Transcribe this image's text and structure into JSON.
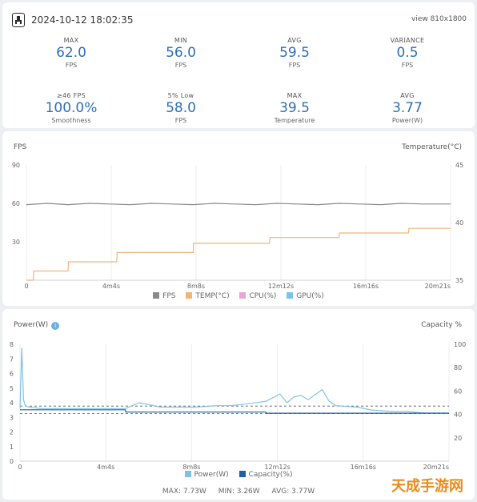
{
  "header": {
    "timestamp": "2024-10-12 18:02:35",
    "resolution": "view 810x1800"
  },
  "stats": [
    {
      "label": "MAX",
      "value": "62.0",
      "unit": "FPS"
    },
    {
      "label": "MIN",
      "value": "56.0",
      "unit": "FPS"
    },
    {
      "label": "AVG",
      "value": "59.5",
      "unit": "FPS"
    },
    {
      "label": "VARIANCE",
      "value": "0.5",
      "unit": "FPS"
    },
    {
      "label": "≥46 FPS",
      "value": "100.0%",
      "unit": "Smoothness"
    },
    {
      "label": "5% Low",
      "value": "58.0",
      "unit": "FPS"
    },
    {
      "label": "MAX",
      "value": "39.5",
      "unit": "Temperature"
    },
    {
      "label": "AVG",
      "value": "3.77",
      "unit": "Power(W)"
    }
  ],
  "fps_chart": {
    "left_title": "FPS",
    "right_title": "Temperature(°C)",
    "legend": [
      {
        "label": "FPS",
        "color": "#8a8a8a"
      },
      {
        "label": "TEMP(°C)",
        "color": "#f1b57a"
      },
      {
        "label": "CPU(%)",
        "color": "#e7a6d6"
      },
      {
        "label": "GPU(%)",
        "color": "#7cc3e8"
      }
    ]
  },
  "power_chart": {
    "left_title": "Power(W)",
    "right_title": "Capacity %",
    "legend": [
      {
        "label": "Power(W)",
        "color": "#7cc3e8"
      },
      {
        "label": "Capacity(%)",
        "color": "#1f5fa3"
      }
    ],
    "summary": {
      "max": "MAX: 7.73W",
      "min": "MIN: 3.26W",
      "avg": "AVG: 3.77W"
    }
  },
  "watermark": "天成手游网",
  "chart_data": [
    {
      "type": "line",
      "x_ticks": [
        "0",
        "4m4s",
        "8m8s",
        "12m12s",
        "16m16s",
        "20m21s"
      ],
      "y_left_ticks": [
        "90",
        "60",
        "30"
      ],
      "y_left_range": [
        0,
        90
      ],
      "y_right_ticks": [
        "45",
        "40",
        "35"
      ],
      "y_right_range": [
        35,
        45
      ],
      "x_range": [
        0,
        1221
      ],
      "grid": "vertical",
      "series": [
        {
          "name": "FPS",
          "axis": "left",
          "x": [
            0,
            60,
            120,
            180,
            240,
            300,
            360,
            420,
            480,
            540,
            600,
            660,
            720,
            780,
            840,
            900,
            960,
            1020,
            1080,
            1140,
            1221
          ],
          "values": [
            59,
            60,
            59,
            60,
            59.5,
            59,
            60,
            59.5,
            59,
            60,
            59.5,
            59,
            60,
            59.5,
            59,
            60,
            59.5,
            59,
            60,
            59.5,
            59.5
          ]
        },
        {
          "name": "TEMP(°C)",
          "axis": "right",
          "x": [
            0,
            20,
            21,
            120,
            121,
            260,
            261,
            480,
            481,
            700,
            701,
            900,
            901,
            1100,
            1101,
            1221
          ],
          "values": [
            35,
            35,
            35.8,
            35.8,
            36.6,
            36.6,
            37.4,
            37.4,
            38.2,
            38.2,
            38.7,
            38.7,
            39.1,
            39.1,
            39.5,
            39.5
          ]
        }
      ]
    },
    {
      "type": "line",
      "x_ticks": [
        "0",
        "4m4s",
        "8m8s",
        "12m12s",
        "16m16s",
        "20m21s"
      ],
      "y_left_ticks": [
        "8",
        "7",
        "6",
        "5",
        "4",
        "3",
        "2",
        "1",
        "0"
      ],
      "y_left_range": [
        0,
        8
      ],
      "y_right_ticks": [
        "100",
        "80",
        "60",
        "40",
        "20"
      ],
      "y_right_range": [
        0,
        100
      ],
      "x_range": [
        0,
        1221
      ],
      "grid": "vertical",
      "series": [
        {
          "name": "Power(W)",
          "axis": "left",
          "x": [
            0,
            5,
            10,
            15,
            25,
            60,
            120,
            200,
            300,
            340,
            400,
            500,
            560,
            600,
            640,
            700,
            740,
            760,
            780,
            800,
            820,
            860,
            880,
            900,
            960,
            1000,
            1060,
            1100,
            1150,
            1221
          ],
          "values": [
            3.6,
            7.73,
            4.2,
            3.8,
            3.7,
            3.6,
            3.6,
            3.6,
            3.6,
            4.0,
            3.7,
            3.7,
            3.8,
            3.8,
            3.9,
            4.1,
            4.6,
            4.0,
            4.4,
            4.5,
            4.2,
            4.9,
            4.1,
            3.8,
            3.7,
            3.5,
            3.4,
            3.4,
            3.3,
            3.3
          ]
        },
        {
          "name": "Capacity(%)",
          "axis": "right",
          "x": [
            0,
            300,
            301,
            700,
            701,
            1221
          ],
          "values": [
            44,
            44,
            42,
            42,
            41,
            41
          ]
        }
      ],
      "reference_lines": [
        {
          "axis": "left",
          "value": 3.77
        },
        {
          "axis": "left",
          "value": 3.26
        }
      ]
    }
  ]
}
